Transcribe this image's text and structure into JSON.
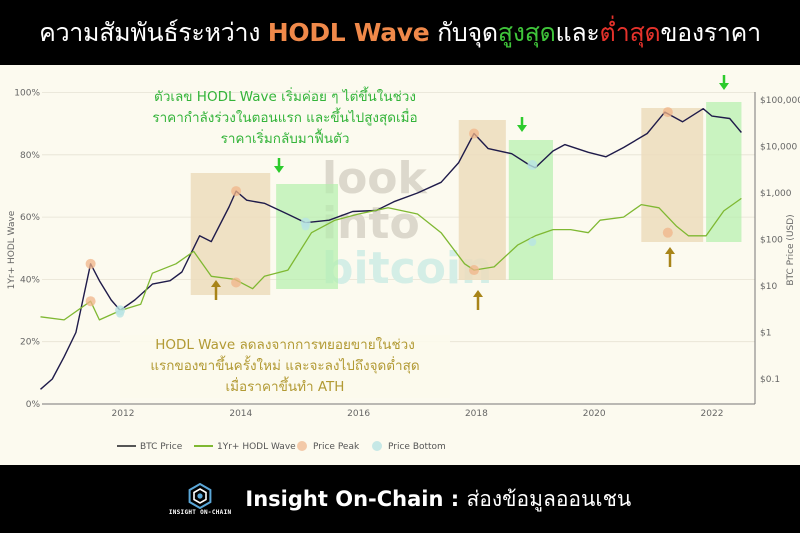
{
  "header": {
    "title_prefix": "ความสัมพันธ์ระหว่าง ",
    "title_highlight": "HODL Wave",
    "title_mid": " กับจุด",
    "title_high": "สูงสุด",
    "title_and": "และ",
    "title_low": "ต่ำสุด",
    "title_suffix": "ของราคา"
  },
  "annotations": {
    "top_green": [
      "ตัวเลข HODL Wave เริ่มค่อย ๆ ไต่ขึ้นในช่วง",
      "ราคากำลังร่วงในตอนแรก และขึ้นไปสูงสุดเมื่อ",
      "ราคาเริ่มกลับมาฟื้นตัว"
    ],
    "bottom_gold": [
      "HODL Wave ลดลงจากการทยอยขายในช่วง",
      "แรกของขาขึ้นครั้งใหม่ และจะลงไปถึงจุดต่ำสุด",
      "เมื่อราคาขึ้นทำ ATH"
    ]
  },
  "watermark": [
    "look",
    "into",
    "bitcoin"
  ],
  "footer": {
    "logo_text": "INSIGHT ON-CHAIN",
    "brand": "Insight On-Chain",
    "separator": " : ",
    "tagline": "ส่องข้อมูลออนเชน"
  },
  "colors": {
    "btc_price": "#1f1b4a",
    "hodl_wave": "#7fb832",
    "price_peak": "#f0b48a",
    "price_bottom": "#b8e4e4",
    "peak_zone": "#ecdcbc",
    "bottom_zone": "#b4f0ac",
    "arrow_green": "#2ccb2c",
    "arrow_gold": "#a88418"
  },
  "chart_data": {
    "type": "line",
    "title": "ความสัมพันธ์ระหว่าง HODL Wave กับจุดสูงสุดและต่ำสุดของราคา",
    "xlabel": "",
    "ylabel": "1Yr+ HODL Wave",
    "ylabel_right": "BTC Price (USD)",
    "x_ticks": [
      "2012",
      "2014",
      "2016",
      "2018",
      "2020",
      "2022"
    ],
    "y_ticks_left": [
      "0%",
      "20%",
      "40%",
      "60%",
      "80%",
      "100%"
    ],
    "y_ticks_right": [
      "$0.1",
      "$1",
      "$10",
      "$100",
      "$1,000",
      "$10,000",
      "$100,000"
    ],
    "ylim_left": [
      0,
      100
    ],
    "ylim_right_log": [
      0.05,
      150000
    ],
    "grid": true,
    "legend": [
      "BTC Price",
      "1Yr+ HODL Wave",
      "Price Peak",
      "Price Bottom"
    ],
    "legend_position": "bottom",
    "series": [
      {
        "name": "BTC Price",
        "axis": "right",
        "x": [
          2010.6,
          2010.8,
          2011.0,
          2011.2,
          2011.45,
          2011.6,
          2011.8,
          2011.95,
          2012.2,
          2012.5,
          2012.8,
          2013.0,
          2013.3,
          2013.5,
          2013.8,
          2013.92,
          2014.1,
          2014.4,
          2014.8,
          2015.1,
          2015.5,
          2015.9,
          2016.3,
          2016.6,
          2017.0,
          2017.4,
          2017.7,
          2017.96,
          2018.2,
          2018.6,
          2018.9,
          2019.0,
          2019.3,
          2019.5,
          2019.9,
          2020.2,
          2020.5,
          2020.9,
          2021.2,
          2021.5,
          2021.85,
          2022.0,
          2022.3,
          2022.5
        ],
        "values": [
          0.06,
          0.1,
          0.3,
          1.0,
          30,
          13,
          5,
          3,
          5,
          11,
          13,
          20,
          120,
          90,
          500,
          1100,
          700,
          600,
          350,
          230,
          260,
          400,
          420,
          650,
          1000,
          1700,
          4500,
          19000,
          9000,
          7000,
          4000,
          3500,
          8000,
          11000,
          7500,
          6000,
          9500,
          19000,
          55000,
          34000,
          65000,
          45000,
          40000,
          20000
        ]
      },
      {
        "name": "1Yr+ HODL Wave",
        "axis": "left",
        "x": [
          2010.6,
          2011.0,
          2011.45,
          2011.6,
          2011.95,
          2012.3,
          2012.5,
          2012.9,
          2013.2,
          2013.5,
          2013.9,
          2014.2,
          2014.4,
          2014.8,
          2015.2,
          2015.6,
          2016.0,
          2016.5,
          2017.0,
          2017.4,
          2017.8,
          2017.96,
          2018.3,
          2018.7,
          2019.0,
          2019.3,
          2019.6,
          2019.9,
          2020.1,
          2020.5,
          2020.8,
          2021.1,
          2021.4,
          2021.6,
          2021.9,
          2022.2,
          2022.5
        ],
        "values": [
          28,
          27,
          33,
          27,
          30,
          32,
          42,
          45,
          49,
          41,
          40,
          37,
          41,
          43,
          55,
          59,
          61,
          63,
          61,
          55,
          45,
          43,
          44,
          51,
          54,
          56,
          56,
          55,
          59,
          60,
          64,
          63,
          57,
          54,
          54,
          62,
          66
        ]
      }
    ],
    "price_peaks": [
      {
        "x": 2011.45,
        "hodl": 33
      },
      {
        "x": 2013.92,
        "hodl": 39
      },
      {
        "x": 2017.96,
        "hodl": 43
      },
      {
        "x": 2021.25,
        "hodl": 55
      }
    ],
    "price_bottoms": [
      {
        "x": 2011.95,
        "hodl": 29
      },
      {
        "x": 2015.1,
        "hodl": 57
      },
      {
        "x": 2018.95,
        "hodl": 52
      }
    ],
    "shaded_zones": [
      {
        "kind": "peak",
        "x0": 2013.15,
        "x1": 2014.5
      },
      {
        "kind": "bottom",
        "x0": 2014.6,
        "x1": 2015.65
      },
      {
        "kind": "peak",
        "x0": 2017.7,
        "x1": 2018.5
      },
      {
        "kind": "bottom",
        "x0": 2018.55,
        "x1": 2019.3
      },
      {
        "kind": "peak",
        "x0": 2020.8,
        "x1": 2021.85
      },
      {
        "kind": "bottom",
        "x0": 2021.9,
        "x1": 2022.5
      }
    ]
  }
}
